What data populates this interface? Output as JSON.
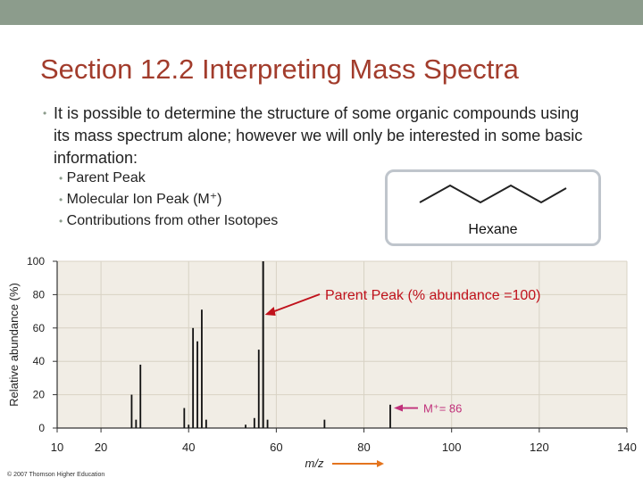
{
  "slide": {
    "title": "Section 12.2  Interpreting Mass Spectra",
    "bullet": "It is possible to determine the structure of some organic compounds using its mass spectrum alone; however we will only be interested in some basic information:",
    "sub_bullets": [
      "Parent Peak",
      "Molecular Ion Peak (M⁺)",
      "Contributions from other Isotopes"
    ],
    "molecule_label": "Hexane",
    "credit": "© 2007 Thomson Higher Education",
    "colors": {
      "title": "#a23c2c",
      "band": "#8c9c8c",
      "annotation": "#c0121c"
    }
  },
  "chart_data": {
    "type": "bar",
    "xlabel": "m/z",
    "ylabel": "Relative abundance (%)",
    "xlim": [
      10,
      140
    ],
    "ylim": [
      0,
      100
    ],
    "xticks": [
      10,
      20,
      40,
      60,
      80,
      100,
      120,
      140
    ],
    "yticks": [
      0,
      20,
      40,
      60,
      80,
      100
    ],
    "grid": true,
    "peaks": [
      {
        "mz": 27,
        "value": 20
      },
      {
        "mz": 28,
        "value": 5
      },
      {
        "mz": 29,
        "value": 38
      },
      {
        "mz": 39,
        "value": 12
      },
      {
        "mz": 40,
        "value": 2
      },
      {
        "mz": 41,
        "value": 60
      },
      {
        "mz": 42,
        "value": 52
      },
      {
        "mz": 43,
        "value": 71
      },
      {
        "mz": 44,
        "value": 5
      },
      {
        "mz": 53,
        "value": 2
      },
      {
        "mz": 55,
        "value": 6
      },
      {
        "mz": 56,
        "value": 47
      },
      {
        "mz": 57,
        "value": 100
      },
      {
        "mz": 58,
        "value": 5
      },
      {
        "mz": 71,
        "value": 5
      },
      {
        "mz": 86,
        "value": 14
      }
    ],
    "annotations": {
      "parent_peak": "Parent Peak (% abundance =100)",
      "molecular_ion": "M⁺= 86"
    }
  }
}
